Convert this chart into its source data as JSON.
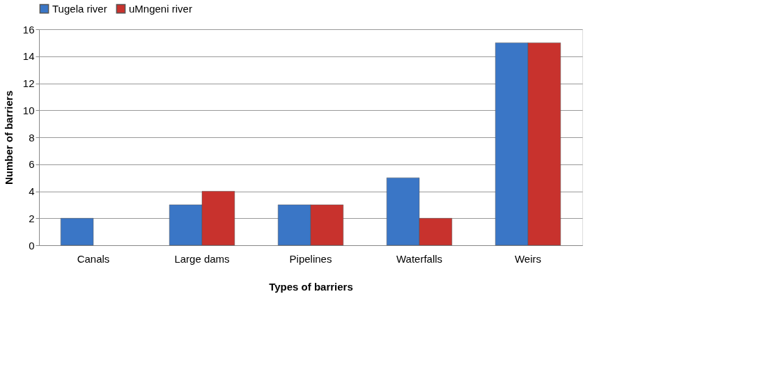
{
  "chart_data": {
    "type": "bar",
    "xlabel": "Types of barriers",
    "ylabel": "Number of  barriers",
    "categories": [
      "Canals",
      "Large dams",
      "Pipelines",
      "Waterfalls",
      "Weirs"
    ],
    "series": [
      {
        "name": "Tugela river",
        "color": "#3a76c6",
        "values": [
          2,
          3,
          3,
          5,
          15
        ]
      },
      {
        "name": "uMngeni river",
        "color": "#c8322d",
        "values": [
          null,
          4,
          3,
          2,
          15
        ]
      }
    ],
    "ylim": [
      0,
      16
    ],
    "yticks": [
      0,
      2,
      4,
      6,
      8,
      10,
      12,
      14,
      16
    ],
    "grid": "y",
    "legend": "top"
  }
}
